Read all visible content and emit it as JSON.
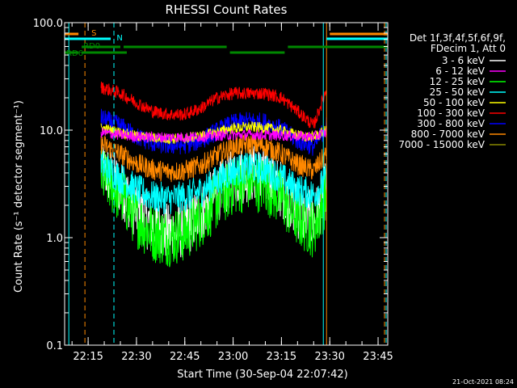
{
  "chart_data": {
    "type": "line",
    "title": "RHESSI Count Rates",
    "xlabel": "Start Time (30-Sep-04 22:07:42)",
    "ylabel": "Count Rate (s⁻¹ detector segment⁻¹)",
    "yscale": "log",
    "ylim": [
      0.1,
      100.0
    ],
    "xlim": [
      "22:07:42",
      "23:48:00"
    ],
    "y_ticks": [
      "0.1",
      "1.0",
      "10.0",
      "100.0"
    ],
    "x_ticks": [
      "22:15",
      "22:30",
      "22:45",
      "23:00",
      "23:15",
      "23:30",
      "23:45"
    ],
    "legend": {
      "placement": "right",
      "header": [
        "Det 1f,3f,4f,5f,6f,9f,",
        "FDecim 1, Att 0"
      ]
    },
    "data_window": [
      "22:19",
      "23:29"
    ],
    "series": [
      {
        "name": "3 - 6 keV",
        "color": "#ffffff",
        "x": [
          "22:19",
          "22:25",
          "22:30",
          "22:35",
          "22:40",
          "22:45",
          "22:50",
          "22:55",
          "23:00",
          "23:05",
          "23:10",
          "23:15",
          "23:20",
          "23:25",
          "23:29"
        ],
        "values": [
          4.5,
          3.0,
          1.8,
          1.3,
          1.1,
          1.2,
          1.7,
          2.6,
          3.6,
          4.0,
          3.8,
          2.8,
          1.8,
          1.4,
          3.0
        ]
      },
      {
        "name": "6 - 12 keV",
        "color": "#ff00ff",
        "x": [
          "22:19",
          "22:25",
          "22:30",
          "22:35",
          "22:40",
          "22:45",
          "22:50",
          "22:55",
          "23:00",
          "23:05",
          "23:10",
          "23:15",
          "23:20",
          "23:25",
          "23:29"
        ],
        "values": [
          9.5,
          9.0,
          8.7,
          8.6,
          8.6,
          8.6,
          8.7,
          8.9,
          9.0,
          9.1,
          9.0,
          8.9,
          8.8,
          8.7,
          9.5
        ]
      },
      {
        "name": "12 - 25 keV",
        "color": "#00ff00",
        "x": [
          "22:19",
          "22:25",
          "22:30",
          "22:35",
          "22:40",
          "22:45",
          "22:50",
          "22:55",
          "23:00",
          "23:05",
          "23:10",
          "23:15",
          "23:20",
          "23:25",
          "23:29"
        ],
        "values": [
          3.8,
          2.5,
          1.5,
          1.1,
          1.0,
          1.1,
          1.5,
          2.2,
          3.0,
          3.3,
          3.1,
          2.3,
          1.5,
          1.2,
          2.5
        ]
      },
      {
        "name": "25 - 50 keV",
        "color": "#00ffff",
        "x": [
          "22:19",
          "22:25",
          "22:30",
          "22:35",
          "22:40",
          "22:45",
          "22:50",
          "22:55",
          "23:00",
          "23:05",
          "23:10",
          "23:15",
          "23:20",
          "23:25",
          "23:29"
        ],
        "values": [
          4.8,
          3.6,
          2.8,
          2.4,
          2.3,
          2.4,
          2.7,
          3.4,
          4.2,
          4.5,
          4.3,
          3.6,
          2.8,
          2.5,
          3.5
        ]
      },
      {
        "name": "50 - 100 keV",
        "color": "#ffff00",
        "x": [
          "22:19",
          "22:25",
          "22:30",
          "22:35",
          "22:40",
          "22:45",
          "22:50",
          "22:55",
          "23:00",
          "23:05",
          "23:10",
          "23:15",
          "23:20",
          "23:25",
          "23:29"
        ],
        "values": [
          10.5,
          9.5,
          8.8,
          8.5,
          8.3,
          8.4,
          8.8,
          9.6,
          10.4,
          10.7,
          10.5,
          9.9,
          9.0,
          8.6,
          10.0
        ]
      },
      {
        "name": "100 - 300 keV",
        "color": "#ff0000",
        "x": [
          "22:19",
          "22:25",
          "22:30",
          "22:35",
          "22:40",
          "22:45",
          "22:50",
          "22:55",
          "23:00",
          "23:05",
          "23:10",
          "23:15",
          "23:20",
          "23:25",
          "23:29"
        ],
        "values": [
          25,
          22,
          18,
          15,
          14,
          14,
          16,
          20,
          22,
          22,
          22,
          20,
          15,
          11,
          24
        ]
      },
      {
        "name": "300 - 800 keV",
        "color": "#0000ff",
        "x": [
          "22:19",
          "22:25",
          "22:30",
          "22:35",
          "22:40",
          "22:45",
          "22:50",
          "22:55",
          "23:00",
          "23:05",
          "23:10",
          "23:15",
          "23:20",
          "23:25",
          "23:29"
        ],
        "values": [
          13,
          11,
          8.7,
          7.6,
          7.2,
          7.3,
          8.0,
          9.8,
          11.6,
          12.2,
          11.8,
          10.2,
          8.0,
          7.0,
          11.0
        ]
      },
      {
        "name": "800 - 7000 keV",
        "color": "#ff8800",
        "x": [
          "22:19",
          "22:25",
          "22:30",
          "22:35",
          "22:40",
          "22:45",
          "22:50",
          "22:55",
          "23:00",
          "23:05",
          "23:10",
          "23:15",
          "23:20",
          "23:25",
          "23:29"
        ],
        "values": [
          7.5,
          6.0,
          4.9,
          4.3,
          4.1,
          4.2,
          4.7,
          5.8,
          7.0,
          7.4,
          7.1,
          6.0,
          4.8,
          4.2,
          6.0
        ]
      },
      {
        "name": "7000 - 15000 keV",
        "color": "#888800",
        "x": [],
        "values": []
      }
    ],
    "flags": [
      {
        "label": "S",
        "color": "#ff8800",
        "segments": [
          [
            "22:07:42",
            "22:12"
          ],
          [
            "23:30",
            "23:48"
          ]
        ]
      },
      {
        "label": "N",
        "color": "#00ffff",
        "segments": [
          [
            "22:07:42",
            "22:22"
          ],
          [
            "23:29",
            "23:48"
          ]
        ]
      },
      {
        "label": "RD0",
        "color": "#008800",
        "segments": [
          [
            "22:13",
            "22:25"
          ],
          [
            "22:26",
            "22:58"
          ],
          [
            "23:17",
            "23:48"
          ]
        ]
      },
      {
        "label": "RD6",
        "color": "#008800",
        "segments": [
          [
            "22:07:42",
            "22:12"
          ],
          [
            "22:13",
            "22:27"
          ],
          [
            "22:59",
            "23:16"
          ]
        ]
      }
    ],
    "markers": [
      {
        "time": "22:09",
        "color": "#00ffff",
        "style": "solid"
      },
      {
        "time": "22:14",
        "color": "#ff8800",
        "style": "dashed"
      },
      {
        "time": "22:23",
        "color": "#00ffff",
        "style": "dashed"
      },
      {
        "time": "23:28",
        "color": "#00ffff",
        "style": "solid"
      },
      {
        "time": "23:29",
        "color": "#ff8800",
        "style": "solid"
      },
      {
        "time": "23:47",
        "color": "#ff8800",
        "style": "dashed"
      },
      {
        "time": "23:47:30",
        "color": "#00ffff",
        "style": "dashed"
      }
    ]
  },
  "timestamp": "21-Oct-2021 08:24"
}
